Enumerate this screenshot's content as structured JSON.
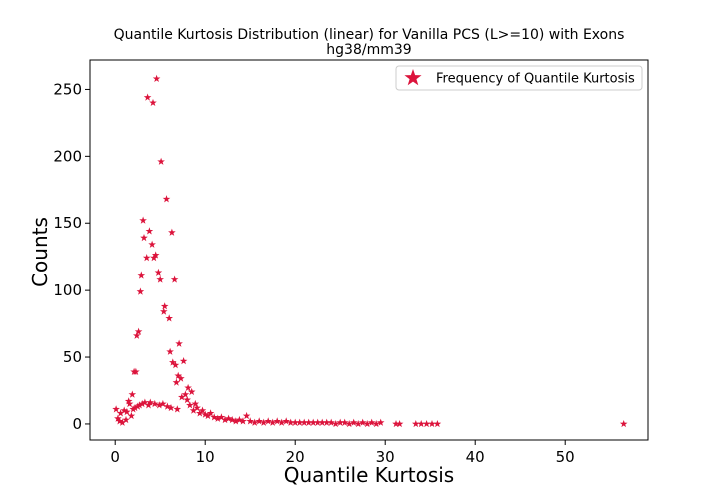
{
  "chart_data": {
    "type": "scatter",
    "title": "Quantile Kurtosis Distribution (linear) for Vanilla PCS (L>=10) with Exons",
    "subtitle": "hg38/mm39",
    "xlabel": "Quantile Kurtosis",
    "ylabel": "Counts",
    "xlim": [
      -2.8,
      59.2
    ],
    "ylim": [
      -12,
      272
    ],
    "xticks": [
      0,
      10,
      20,
      30,
      40,
      50
    ],
    "yticks": [
      0,
      50,
      100,
      150,
      200,
      250
    ],
    "grid": false,
    "legend_position": "top-right",
    "marker": "star",
    "color": "#dc143c",
    "series": [
      {
        "name": "Frequency of Quantile Kurtosis",
        "points": [
          [
            0.1,
            11
          ],
          [
            0.3,
            4
          ],
          [
            0.5,
            2
          ],
          [
            0.6,
            8
          ],
          [
            0.8,
            1
          ],
          [
            1.0,
            10
          ],
          [
            1.2,
            3
          ],
          [
            1.3,
            9
          ],
          [
            1.5,
            17
          ],
          [
            1.6,
            15
          ],
          [
            1.8,
            6
          ],
          [
            1.9,
            22
          ],
          [
            2.0,
            11
          ],
          [
            2.1,
            39
          ],
          [
            2.2,
            12
          ],
          [
            2.3,
            39
          ],
          [
            2.4,
            66
          ],
          [
            2.5,
            13
          ],
          [
            2.6,
            69
          ],
          [
            2.7,
            14
          ],
          [
            2.8,
            99
          ],
          [
            2.9,
            111
          ],
          [
            3.0,
            15
          ],
          [
            3.1,
            152
          ],
          [
            3.2,
            139
          ],
          [
            3.3,
            16
          ],
          [
            3.5,
            124
          ],
          [
            3.6,
            244
          ],
          [
            3.7,
            14
          ],
          [
            3.8,
            144
          ],
          [
            3.9,
            16
          ],
          [
            4.1,
            134
          ],
          [
            4.2,
            240
          ],
          [
            4.3,
            124
          ],
          [
            4.4,
            15
          ],
          [
            4.5,
            126
          ],
          [
            4.6,
            258
          ],
          [
            4.8,
            113
          ],
          [
            4.9,
            14
          ],
          [
            5.0,
            108
          ],
          [
            5.1,
            196
          ],
          [
            5.3,
            15
          ],
          [
            5.4,
            84
          ],
          [
            5.5,
            88
          ],
          [
            5.7,
            168
          ],
          [
            5.8,
            13
          ],
          [
            6.0,
            79
          ],
          [
            6.1,
            54
          ],
          [
            6.2,
            12
          ],
          [
            6.3,
            143
          ],
          [
            6.4,
            46
          ],
          [
            6.6,
            108
          ],
          [
            6.7,
            44
          ],
          [
            6.8,
            31
          ],
          [
            6.9,
            11
          ],
          [
            7.0,
            36
          ],
          [
            7.1,
            60
          ],
          [
            7.3,
            34
          ],
          [
            7.4,
            20
          ],
          [
            7.6,
            47
          ],
          [
            7.8,
            22
          ],
          [
            8.0,
            18
          ],
          [
            8.1,
            27
          ],
          [
            8.3,
            14
          ],
          [
            8.5,
            24
          ],
          [
            8.7,
            10
          ],
          [
            8.9,
            15
          ],
          [
            9.1,
            12
          ],
          [
            9.4,
            8
          ],
          [
            9.7,
            10
          ],
          [
            10.0,
            7
          ],
          [
            10.3,
            6
          ],
          [
            10.6,
            8
          ],
          [
            11.0,
            5
          ],
          [
            11.4,
            4
          ],
          [
            11.8,
            5
          ],
          [
            12.2,
            3
          ],
          [
            12.6,
            4
          ],
          [
            13.0,
            3
          ],
          [
            13.4,
            2
          ],
          [
            13.8,
            3
          ],
          [
            14.2,
            2
          ],
          [
            14.6,
            6
          ],
          [
            15.0,
            2
          ],
          [
            15.5,
            1
          ],
          [
            16.0,
            2
          ],
          [
            16.5,
            1
          ],
          [
            17.0,
            2
          ],
          [
            17.5,
            1
          ],
          [
            18.0,
            2
          ],
          [
            18.5,
            1
          ],
          [
            19.0,
            2
          ],
          [
            19.5,
            1
          ],
          [
            20.0,
            1
          ],
          [
            20.5,
            1
          ],
          [
            21.0,
            1
          ],
          [
            21.5,
            1
          ],
          [
            22.0,
            1
          ],
          [
            22.5,
            1
          ],
          [
            23.0,
            1
          ],
          [
            23.5,
            1
          ],
          [
            24.0,
            1
          ],
          [
            24.5,
            0
          ],
          [
            25.0,
            1
          ],
          [
            25.5,
            1
          ],
          [
            26.0,
            0
          ],
          [
            26.5,
            1
          ],
          [
            27.0,
            0
          ],
          [
            27.5,
            1
          ],
          [
            28.0,
            0
          ],
          [
            28.5,
            1
          ],
          [
            29.0,
            0
          ],
          [
            29.5,
            1
          ],
          [
            31.2,
            0
          ],
          [
            31.6,
            0
          ],
          [
            33.4,
            0
          ],
          [
            34.0,
            0
          ],
          [
            34.6,
            0
          ],
          [
            35.2,
            0
          ],
          [
            35.8,
            0
          ],
          [
            56.5,
            0
          ]
        ]
      }
    ]
  }
}
